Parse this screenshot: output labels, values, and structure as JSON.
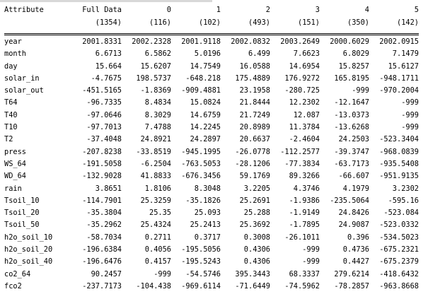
{
  "header": {
    "attribute_label": "Attribute",
    "columns": [
      "Full Data",
      "0",
      "1",
      "2",
      "3",
      "4",
      "5"
    ],
    "counts": [
      "(1354)",
      "(116)",
      "(102)",
      "(493)",
      "(151)",
      "(350)",
      "(142)"
    ]
  },
  "rows": [
    {
      "name": "year",
      "values": [
        "2001.8331",
        "2002.2328",
        "2001.9118",
        "2002.0832",
        "2003.2649",
        "2000.6029",
        "2002.0915"
      ]
    },
    {
      "name": "month",
      "values": [
        "6.6713",
        "6.5862",
        "5.0196",
        "6.499",
        "7.6623",
        "6.8029",
        "7.1479"
      ]
    },
    {
      "name": "day",
      "values": [
        "15.664",
        "15.6207",
        "14.7549",
        "16.0588",
        "14.6954",
        "15.8257",
        "15.6127"
      ]
    },
    {
      "name": "solar_in",
      "values": [
        "-4.7675",
        "198.5737",
        "-648.218",
        "175.4889",
        "176.9272",
        "165.8195",
        "-948.1711"
      ]
    },
    {
      "name": "solar_out",
      "values": [
        "-451.5165",
        "-1.8369",
        "-909.4881",
        "23.1958",
        "-280.725",
        "-999",
        "-970.2004"
      ]
    },
    {
      "name": "T64",
      "values": [
        "-96.7335",
        "8.4834",
        "15.0824",
        "21.8444",
        "12.2302",
        "-12.1647",
        "-999"
      ]
    },
    {
      "name": "T40",
      "values": [
        "-97.0646",
        "8.3029",
        "14.6759",
        "21.7249",
        "12.087",
        "-13.0373",
        "-999"
      ]
    },
    {
      "name": "T10",
      "values": [
        "-97.7013",
        "7.4788",
        "14.2245",
        "20.8989",
        "11.3784",
        "-13.6268",
        "-999"
      ]
    },
    {
      "name": "T2",
      "values": [
        "-37.4048",
        "24.8921",
        "24.2897",
        "20.6637",
        "-2.4604",
        "24.2503",
        "-523.3404"
      ]
    },
    {
      "name": "press",
      "values": [
        "-207.8238",
        "-33.8519",
        "-945.1995",
        "-26.0778",
        "-112.2577",
        "-39.3747",
        "-968.0839"
      ]
    },
    {
      "name": "WS_64",
      "values": [
        "-191.5058",
        "-6.2504",
        "-763.5053",
        "-28.1206",
        "-77.3834",
        "-63.7173",
        "-935.5408"
      ]
    },
    {
      "name": "WD_64",
      "values": [
        "-132.9028",
        "41.8833",
        "-676.3456",
        "59.1769",
        "89.3266",
        "-66.607",
        "-951.9135"
      ]
    },
    {
      "name": "rain",
      "values": [
        "3.8651",
        "1.8106",
        "8.3048",
        "3.2205",
        "4.3746",
        "4.1979",
        "3.2302"
      ]
    },
    {
      "name": "Tsoil_10",
      "values": [
        "-114.7901",
        "25.3259",
        "-35.1826",
        "25.2691",
        "-1.9386",
        "-235.5064",
        "-595.16"
      ]
    },
    {
      "name": "Tsoil_20",
      "values": [
        "-35.3804",
        "25.35",
        "25.093",
        "25.288",
        "-1.9149",
        "24.8426",
        "-523.084"
      ]
    },
    {
      "name": "Tsoil_50",
      "values": [
        "-35.2962",
        "25.4324",
        "25.2413",
        "25.3692",
        "-1.7895",
        "24.9087",
        "-523.0332"
      ]
    },
    {
      "name": "h2o_soil_10",
      "values": [
        "-58.7034",
        "0.2711",
        "0.3717",
        "0.3008",
        "-26.1011",
        "0.396",
        "-534.5023"
      ]
    },
    {
      "name": "h2o_soil_20",
      "values": [
        "-196.6384",
        "0.4056",
        "-195.5056",
        "0.4306",
        "-999",
        "0.4736",
        "-675.2321"
      ]
    },
    {
      "name": "h2o_soil_40",
      "values": [
        "-196.6476",
        "0.4157",
        "-195.5243",
        "0.4306",
        "-999",
        "0.4427",
        "-675.2379"
      ]
    },
    {
      "name": "co2_64",
      "values": [
        "90.2457",
        "-999",
        "-54.5746",
        "395.3443",
        "68.3337",
        "279.6214",
        "-418.6432"
      ]
    },
    {
      "name": "fco2",
      "values": [
        "-237.7173",
        "-104.438",
        "-969.6114",
        "-71.6449",
        "-74.5962",
        "-78.2857",
        "-963.8668"
      ]
    }
  ]
}
